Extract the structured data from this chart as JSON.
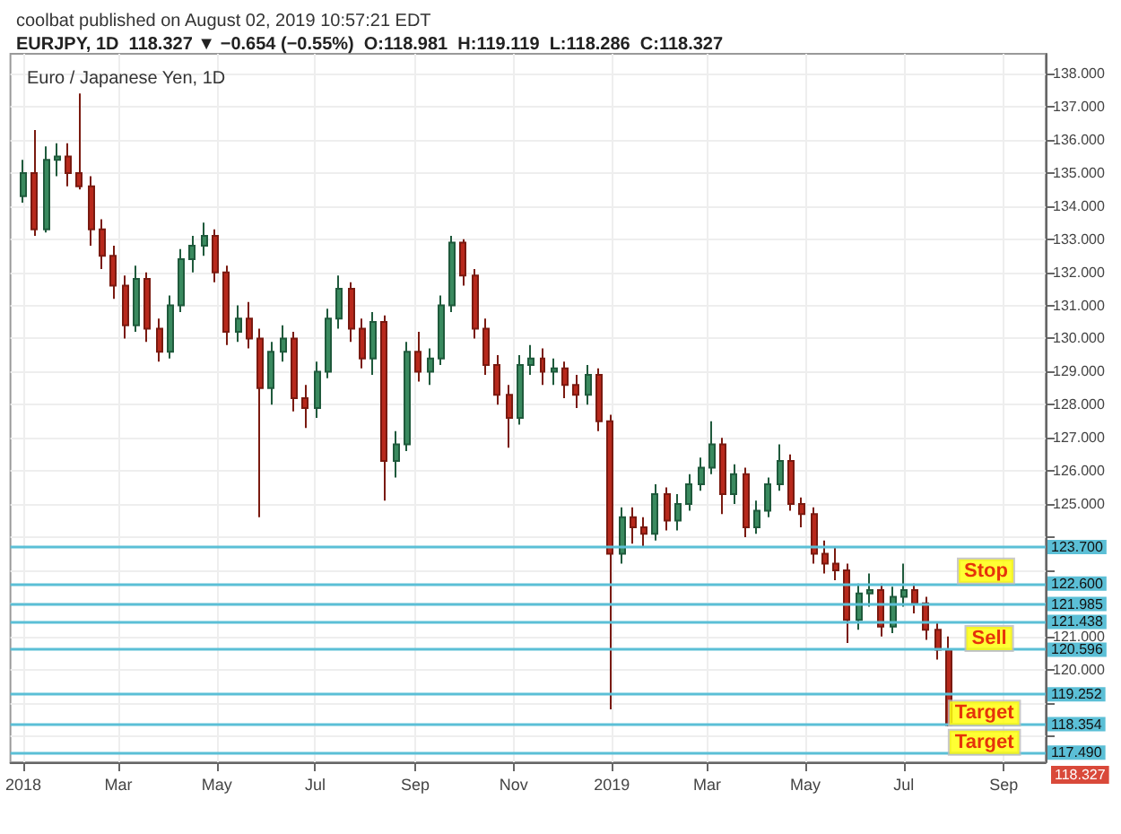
{
  "chart_data": {
    "type": "candlestick",
    "title": "Euro / Japanese Yen, 1D",
    "subtitle": "EURJPY, 1D  118.327 ▼ −0.654 (−0.55%)  O:118.981  H:119.119  L:118.286  C:118.327",
    "annotations": [
      "coolbat published on August 02, 2019 10:57:21 EDT",
      {
        "text": "Stop",
        "x": "2019-08-21",
        "y": 122.98
      },
      {
        "text": "Sell",
        "x": "2019-08-23",
        "y": 120.94
      },
      {
        "text": "Target",
        "x": "2019-08-20",
        "y": 118.68
      },
      {
        "text": "Target",
        "x": "2019-08-20",
        "y": 117.8
      },
      "118.327"
    ],
    "x": [
      "2018-01-01",
      "2018-01-08",
      "2018-01-15",
      "2018-01-22",
      "2018-01-29",
      "2018-02-05",
      "2018-02-12",
      "2018-02-19",
      "2018-02-26",
      "2018-03-05",
      "2018-03-12",
      "2018-03-19",
      "2018-03-26",
      "2018-04-02",
      "2018-04-09",
      "2018-04-16",
      "2018-04-23",
      "2018-04-30",
      "2018-05-07",
      "2018-05-14",
      "2018-05-21",
      "2018-05-28",
      "2018-06-04",
      "2018-06-11",
      "2018-06-18",
      "2018-06-25",
      "2018-07-02",
      "2018-07-09",
      "2018-07-16",
      "2018-07-23",
      "2018-07-30",
      "2018-08-06",
      "2018-08-13",
      "2018-08-20",
      "2018-08-27",
      "2018-09-03",
      "2018-09-10",
      "2018-09-17",
      "2018-09-24",
      "2018-10-01",
      "2018-10-08",
      "2018-10-15",
      "2018-10-22",
      "2018-10-29",
      "2018-11-05",
      "2018-11-12",
      "2018-11-19",
      "2018-11-26",
      "2018-12-03",
      "2018-12-10",
      "2018-12-17",
      "2018-12-24",
      "2018-12-31",
      "2019-01-07",
      "2019-01-14",
      "2019-01-21",
      "2019-01-28",
      "2019-02-04",
      "2019-02-11",
      "2019-02-18",
      "2019-02-25",
      "2019-03-04",
      "2019-03-11",
      "2019-03-18",
      "2019-03-25",
      "2019-04-01",
      "2019-04-08",
      "2019-04-15",
      "2019-04-22",
      "2019-04-29",
      "2019-05-06",
      "2019-05-13",
      "2019-05-20",
      "2019-05-27",
      "2019-06-03",
      "2019-06-10",
      "2019-06-17",
      "2019-06-24",
      "2019-07-01",
      "2019-07-08",
      "2019-07-15",
      "2019-07-22",
      "2019-07-29"
    ],
    "ohlc": [
      [
        134.3,
        135.4,
        134.1,
        135.0
      ],
      [
        135.0,
        136.3,
        133.1,
        133.3
      ],
      [
        133.3,
        135.8,
        133.2,
        135.4
      ],
      [
        135.4,
        135.9,
        134.9,
        135.5
      ],
      [
        135.5,
        135.9,
        134.6,
        135.0
      ],
      [
        135.0,
        137.4,
        134.5,
        134.6
      ],
      [
        134.6,
        134.9,
        132.8,
        133.3
      ],
      [
        133.3,
        133.6,
        132.1,
        132.5
      ],
      [
        132.5,
        132.8,
        131.2,
        131.6
      ],
      [
        131.6,
        131.9,
        130.0,
        130.4
      ],
      [
        130.4,
        132.2,
        130.2,
        131.8
      ],
      [
        131.8,
        132.0,
        129.9,
        130.3
      ],
      [
        130.3,
        130.6,
        129.3,
        129.6
      ],
      [
        129.6,
        131.3,
        129.4,
        131.0
      ],
      [
        131.0,
        132.7,
        130.8,
        132.4
      ],
      [
        132.4,
        133.1,
        132.0,
        132.8
      ],
      [
        132.8,
        133.5,
        132.5,
        133.1
      ],
      [
        133.1,
        133.3,
        131.7,
        132.0
      ],
      [
        132.0,
        132.2,
        129.8,
        130.2
      ],
      [
        130.2,
        131.0,
        129.9,
        130.6
      ],
      [
        130.6,
        131.1,
        129.7,
        130.0
      ],
      [
        130.0,
        130.3,
        124.6,
        128.5
      ],
      [
        128.5,
        129.9,
        128.0,
        129.6
      ],
      [
        129.6,
        130.4,
        129.3,
        130.0
      ],
      [
        130.0,
        130.2,
        127.8,
        128.2
      ],
      [
        128.2,
        128.6,
        127.3,
        127.9
      ],
      [
        127.9,
        129.3,
        127.6,
        129.0
      ],
      [
        129.0,
        130.9,
        128.8,
        130.6
      ],
      [
        130.6,
        131.9,
        130.3,
        131.5
      ],
      [
        131.5,
        131.7,
        129.9,
        130.3
      ],
      [
        130.3,
        130.6,
        129.1,
        129.4
      ],
      [
        129.4,
        130.8,
        128.9,
        130.5
      ],
      [
        130.5,
        130.7,
        125.1,
        126.3
      ],
      [
        126.3,
        127.2,
        125.8,
        126.8
      ],
      [
        126.8,
        129.9,
        126.6,
        129.6
      ],
      [
        129.6,
        130.2,
        128.7,
        129.0
      ],
      [
        129.0,
        129.7,
        128.6,
        129.4
      ],
      [
        129.4,
        131.3,
        129.2,
        131.0
      ],
      [
        131.0,
        133.1,
        130.8,
        132.9
      ],
      [
        132.9,
        133.0,
        131.6,
        131.9
      ],
      [
        131.9,
        132.1,
        130.0,
        130.3
      ],
      [
        130.3,
        130.6,
        128.9,
        129.2
      ],
      [
        129.2,
        129.5,
        128.0,
        128.3
      ],
      [
        128.3,
        128.6,
        126.7,
        127.6
      ],
      [
        127.6,
        129.5,
        127.4,
        129.2
      ],
      [
        129.2,
        129.8,
        128.9,
        129.4
      ],
      [
        129.4,
        129.7,
        128.6,
        129.0
      ],
      [
        129.0,
        129.4,
        128.6,
        129.1
      ],
      [
        129.1,
        129.3,
        128.2,
        128.6
      ],
      [
        128.6,
        128.9,
        127.9,
        128.3
      ],
      [
        128.3,
        129.2,
        128.0,
        128.9
      ],
      [
        128.9,
        129.1,
        127.2,
        127.5
      ],
      [
        127.5,
        127.7,
        118.8,
        123.5
      ],
      [
        123.5,
        124.9,
        123.2,
        124.6
      ],
      [
        124.6,
        124.9,
        123.8,
        124.3
      ],
      [
        124.3,
        124.6,
        123.7,
        124.1
      ],
      [
        124.1,
        125.6,
        123.9,
        125.3
      ],
      [
        125.3,
        125.5,
        124.2,
        124.5
      ],
      [
        124.5,
        125.3,
        124.2,
        125.0
      ],
      [
        125.0,
        125.9,
        124.8,
        125.6
      ],
      [
        125.6,
        126.4,
        125.4,
        126.1
      ],
      [
        126.1,
        127.5,
        125.9,
        126.8
      ],
      [
        126.8,
        127.0,
        124.7,
        125.3
      ],
      [
        125.3,
        126.2,
        125.0,
        125.9
      ],
      [
        125.9,
        126.1,
        124.0,
        124.3
      ],
      [
        124.3,
        125.1,
        124.1,
        124.8
      ],
      [
        124.8,
        125.8,
        124.6,
        125.6
      ],
      [
        125.6,
        126.8,
        125.4,
        126.3
      ],
      [
        126.3,
        126.5,
        124.8,
        125.0
      ],
      [
        125.0,
        125.2,
        124.3,
        124.7
      ],
      [
        124.7,
        124.9,
        123.2,
        123.5
      ],
      [
        123.5,
        123.9,
        122.9,
        123.2
      ],
      [
        123.2,
        123.7,
        122.7,
        123.0
      ],
      [
        123.0,
        123.2,
        120.8,
        121.5
      ],
      [
        121.5,
        122.6,
        121.2,
        122.3
      ],
      [
        122.3,
        122.9,
        121.9,
        122.4
      ],
      [
        122.4,
        122.6,
        121.0,
        121.3
      ],
      [
        121.3,
        122.5,
        121.1,
        122.2
      ],
      [
        122.2,
        123.2,
        121.9,
        122.4
      ],
      [
        122.4,
        122.6,
        121.7,
        122.0
      ],
      [
        122.0,
        122.2,
        120.9,
        121.2
      ],
      [
        121.2,
        121.4,
        120.3,
        120.6
      ],
      [
        120.6,
        121.0,
        118.286,
        118.327
      ]
    ],
    "xlim": [
      "2017-12-24",
      "2019-09-27"
    ],
    "xticks": [
      {
        "value": "2018-01-01",
        "label": "2018"
      },
      {
        "value": "2018-03-01",
        "label": "Mar"
      },
      {
        "value": "2018-05-01",
        "label": "May"
      },
      {
        "value": "2018-07-01",
        "label": "Jul"
      },
      {
        "value": "2018-09-01",
        "label": "Sep"
      },
      {
        "value": "2018-11-01",
        "label": "Nov"
      },
      {
        "value": "2019-01-01",
        "label": "2019"
      },
      {
        "value": "2019-03-01",
        "label": "Mar"
      },
      {
        "value": "2019-05-01",
        "label": "May"
      },
      {
        "value": "2019-07-01",
        "label": "Jul"
      },
      {
        "value": "2019-09-01",
        "label": "Sep"
      }
    ],
    "ylim": [
      117.2,
      138.6
    ],
    "yticks": [
      {
        "value": 118,
        "label": null
      },
      {
        "value": 119,
        "label": null
      },
      {
        "value": 120,
        "label": "120.000"
      },
      {
        "value": 121,
        "label": "121.000"
      },
      {
        "value": 122,
        "label": null
      },
      {
        "value": 123,
        "label": null
      },
      {
        "value": 124,
        "label": null
      },
      {
        "value": 125,
        "label": "125.000"
      },
      {
        "value": 126,
        "label": "126.000"
      },
      {
        "value": 127,
        "label": "127.000"
      },
      {
        "value": 128,
        "label": "128.000"
      },
      {
        "value": 129,
        "label": "129.000"
      },
      {
        "value": 130,
        "label": "130.000"
      },
      {
        "value": 131,
        "label": "131.000"
      },
      {
        "value": 132,
        "label": "132.000"
      },
      {
        "value": 133,
        "label": "133.000"
      },
      {
        "value": 134,
        "label": "134.000"
      },
      {
        "value": 135,
        "label": "135.000"
      },
      {
        "value": 136,
        "label": "136.000"
      },
      {
        "value": 137,
        "label": "137.000"
      },
      {
        "value": 138,
        "label": "138.000"
      }
    ],
    "ref_lines": [
      {
        "axis": "y",
        "value": 123.7,
        "label": "123.700",
        "color": "#5bbfd6"
      },
      {
        "axis": "y",
        "value": 122.6,
        "label": "122.600",
        "color": "#5bbfd6"
      },
      {
        "axis": "y",
        "value": 121.985,
        "label": "121.985",
        "color": "#5bbfd6"
      },
      {
        "axis": "y",
        "value": 121.438,
        "label": "121.438",
        "color": "#5bbfd6"
      },
      {
        "axis": "y",
        "value": 120.596,
        "label": "120.596",
        "color": "#5bbfd6"
      },
      {
        "axis": "y",
        "value": 119.252,
        "label": "119.252",
        "color": "#5bbfd6"
      },
      {
        "axis": "y",
        "value": 118.354,
        "label": "118.354",
        "color": "#5bbfd6"
      },
      {
        "axis": "y",
        "value": 117.49,
        "label": "117.490",
        "color": "#5bbfd6"
      }
    ],
    "grid": true
  }
}
